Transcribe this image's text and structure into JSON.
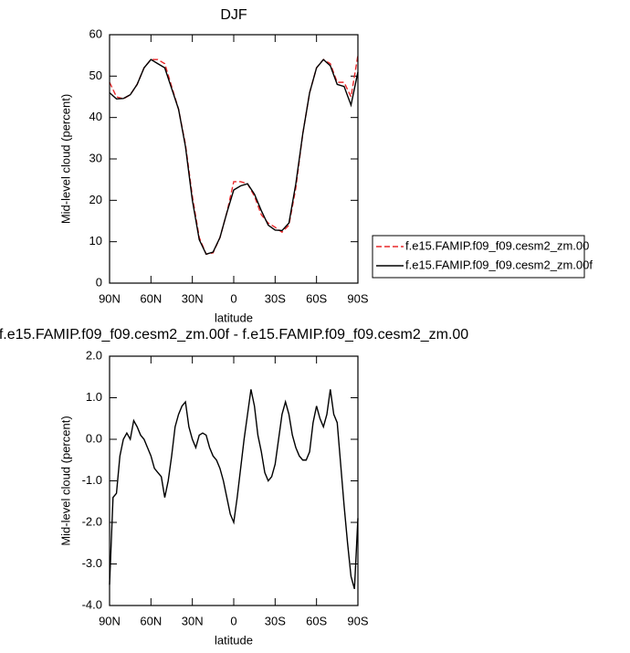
{
  "chart_data": [
    {
      "type": "line",
      "title": "DJF",
      "xlabel": "latitude",
      "ylabel": "Mid-level cloud (percent)",
      "x": [
        90,
        85,
        80,
        75,
        70,
        65,
        60,
        55,
        50,
        45,
        40,
        35,
        30,
        25,
        20,
        15,
        10,
        5,
        0,
        -5,
        -10,
        -15,
        -20,
        -25,
        -30,
        -35,
        -40,
        -45,
        -50,
        -55,
        -60,
        -65,
        -70,
        -75,
        -80,
        -85,
        -90
      ],
      "series": [
        {
          "name": "f.e15.FAMIP.f09_f09.cesm2_zm.00",
          "color": "#e8282a",
          "line_style": "dashed",
          "values": [
            48.5,
            45,
            44.5,
            45.5,
            48,
            52,
            54,
            54,
            53,
            47.5,
            42,
            33.5,
            21,
            11,
            7,
            7.3,
            11,
            17,
            24.5,
            24.5,
            24,
            21,
            16.5,
            14.5,
            13.5,
            12.3,
            14,
            23,
            36,
            46,
            52,
            54,
            53,
            48.5,
            48.5,
            45,
            55
          ]
        },
        {
          "name": "f.e15.FAMIP.f09_f09.cesm2_zm.00f",
          "color": "#000000",
          "line_style": "solid",
          "values": [
            46,
            44.5,
            44.6,
            45.5,
            48,
            52,
            54,
            53,
            52,
            47,
            42,
            33,
            20,
            10.5,
            7,
            7.5,
            11,
            17,
            22.5,
            23.5,
            24,
            21.5,
            17.5,
            14,
            12.8,
            12.7,
            14.5,
            24,
            36,
            46,
            52,
            54,
            52.5,
            48,
            47.5,
            43,
            51
          ]
        }
      ],
      "xlim": [
        90,
        -90
      ],
      "xticks": [
        {
          "value": 90,
          "label": "90N"
        },
        {
          "value": 60,
          "label": "60N"
        },
        {
          "value": 30,
          "label": "30N"
        },
        0,
        {
          "value": -30,
          "label": "30S"
        },
        {
          "value": -60,
          "label": "60S"
        },
        {
          "value": -90,
          "label": "90S"
        }
      ],
      "ylim": [
        0,
        60
      ],
      "yticks": [
        0,
        10,
        20,
        30,
        40,
        50,
        60
      ],
      "legend": "right"
    },
    {
      "type": "line",
      "title": "f.e15.FAMIP.f09_f09.cesm2_zm.00f - f.e15.FAMIP.f09_f09.cesm2_zm.00",
      "xlabel": "latitude",
      "ylabel": "Mid-level cloud (percent)",
      "x": [
        90,
        87.5,
        85,
        82.5,
        80,
        77.5,
        75,
        72.5,
        70,
        67.5,
        65,
        62.5,
        60,
        57.5,
        55,
        52.5,
        50,
        47.5,
        45,
        42.5,
        40,
        37.5,
        35,
        32.5,
        30,
        27.5,
        25,
        22.5,
        20,
        17.5,
        15,
        12.5,
        10,
        7.5,
        5,
        2.5,
        0,
        -2.5,
        -5,
        -7.5,
        -10,
        -12.5,
        -15,
        -17.5,
        -20,
        -22.5,
        -25,
        -27.5,
        -30,
        -32.5,
        -35,
        -37.5,
        -40,
        -42.5,
        -45,
        -47.5,
        -50,
        -52.5,
        -55,
        -57.5,
        -60,
        -62.5,
        -65,
        -67.5,
        -70,
        -72.5,
        -75,
        -77.5,
        -80,
        -82.5,
        -85,
        -87.5,
        -90
      ],
      "series": [
        {
          "color": "#000000",
          "line_style": "solid",
          "values": [
            -3.5,
            -1.4,
            -1.3,
            -0.4,
            0,
            0.15,
            0,
            0.45,
            0.3,
            0.1,
            0,
            -0.2,
            -0.4,
            -0.7,
            -0.8,
            -0.9,
            -1.4,
            -1.0,
            -0.4,
            0.3,
            0.6,
            0.8,
            0.9,
            0.3,
            0,
            -0.2,
            0.1,
            0.15,
            0.1,
            -0.2,
            -0.4,
            -0.5,
            -0.7,
            -1.0,
            -1.4,
            -1.8,
            -2.0,
            -1.4,
            -0.7,
            0,
            0.6,
            1.2,
            0.8,
            0.1,
            -0.3,
            -0.8,
            -1.0,
            -0.9,
            -0.6,
            0,
            0.6,
            0.9,
            0.6,
            0.1,
            -0.2,
            -0.4,
            -0.5,
            -0.5,
            -0.3,
            0.4,
            0.8,
            0.5,
            0.3,
            0.6,
            1.2,
            0.6,
            0.4,
            -0.6,
            -1.6,
            -2.5,
            -3.3,
            -3.6,
            -1.9
          ]
        }
      ],
      "xlim": [
        90,
        -90
      ],
      "xticks": [
        {
          "value": 90,
          "label": "90N"
        },
        {
          "value": 60,
          "label": "60N"
        },
        {
          "value": 30,
          "label": "30N"
        },
        0,
        {
          "value": -30,
          "label": "30S"
        },
        {
          "value": -60,
          "label": "60S"
        },
        {
          "value": -90,
          "label": "90S"
        }
      ],
      "ylim": [
        -4,
        2
      ],
      "yticks": [
        {
          "value": -4,
          "label": "-4.0"
        },
        {
          "value": -3,
          "label": "-3.0"
        },
        {
          "value": -2,
          "label": "-2.0"
        },
        {
          "value": -1,
          "label": "-1.0"
        },
        {
          "value": 0,
          "label": "0.0"
        },
        {
          "value": 1,
          "label": "1.0"
        },
        {
          "value": 2,
          "label": "2.0"
        }
      ]
    }
  ]
}
